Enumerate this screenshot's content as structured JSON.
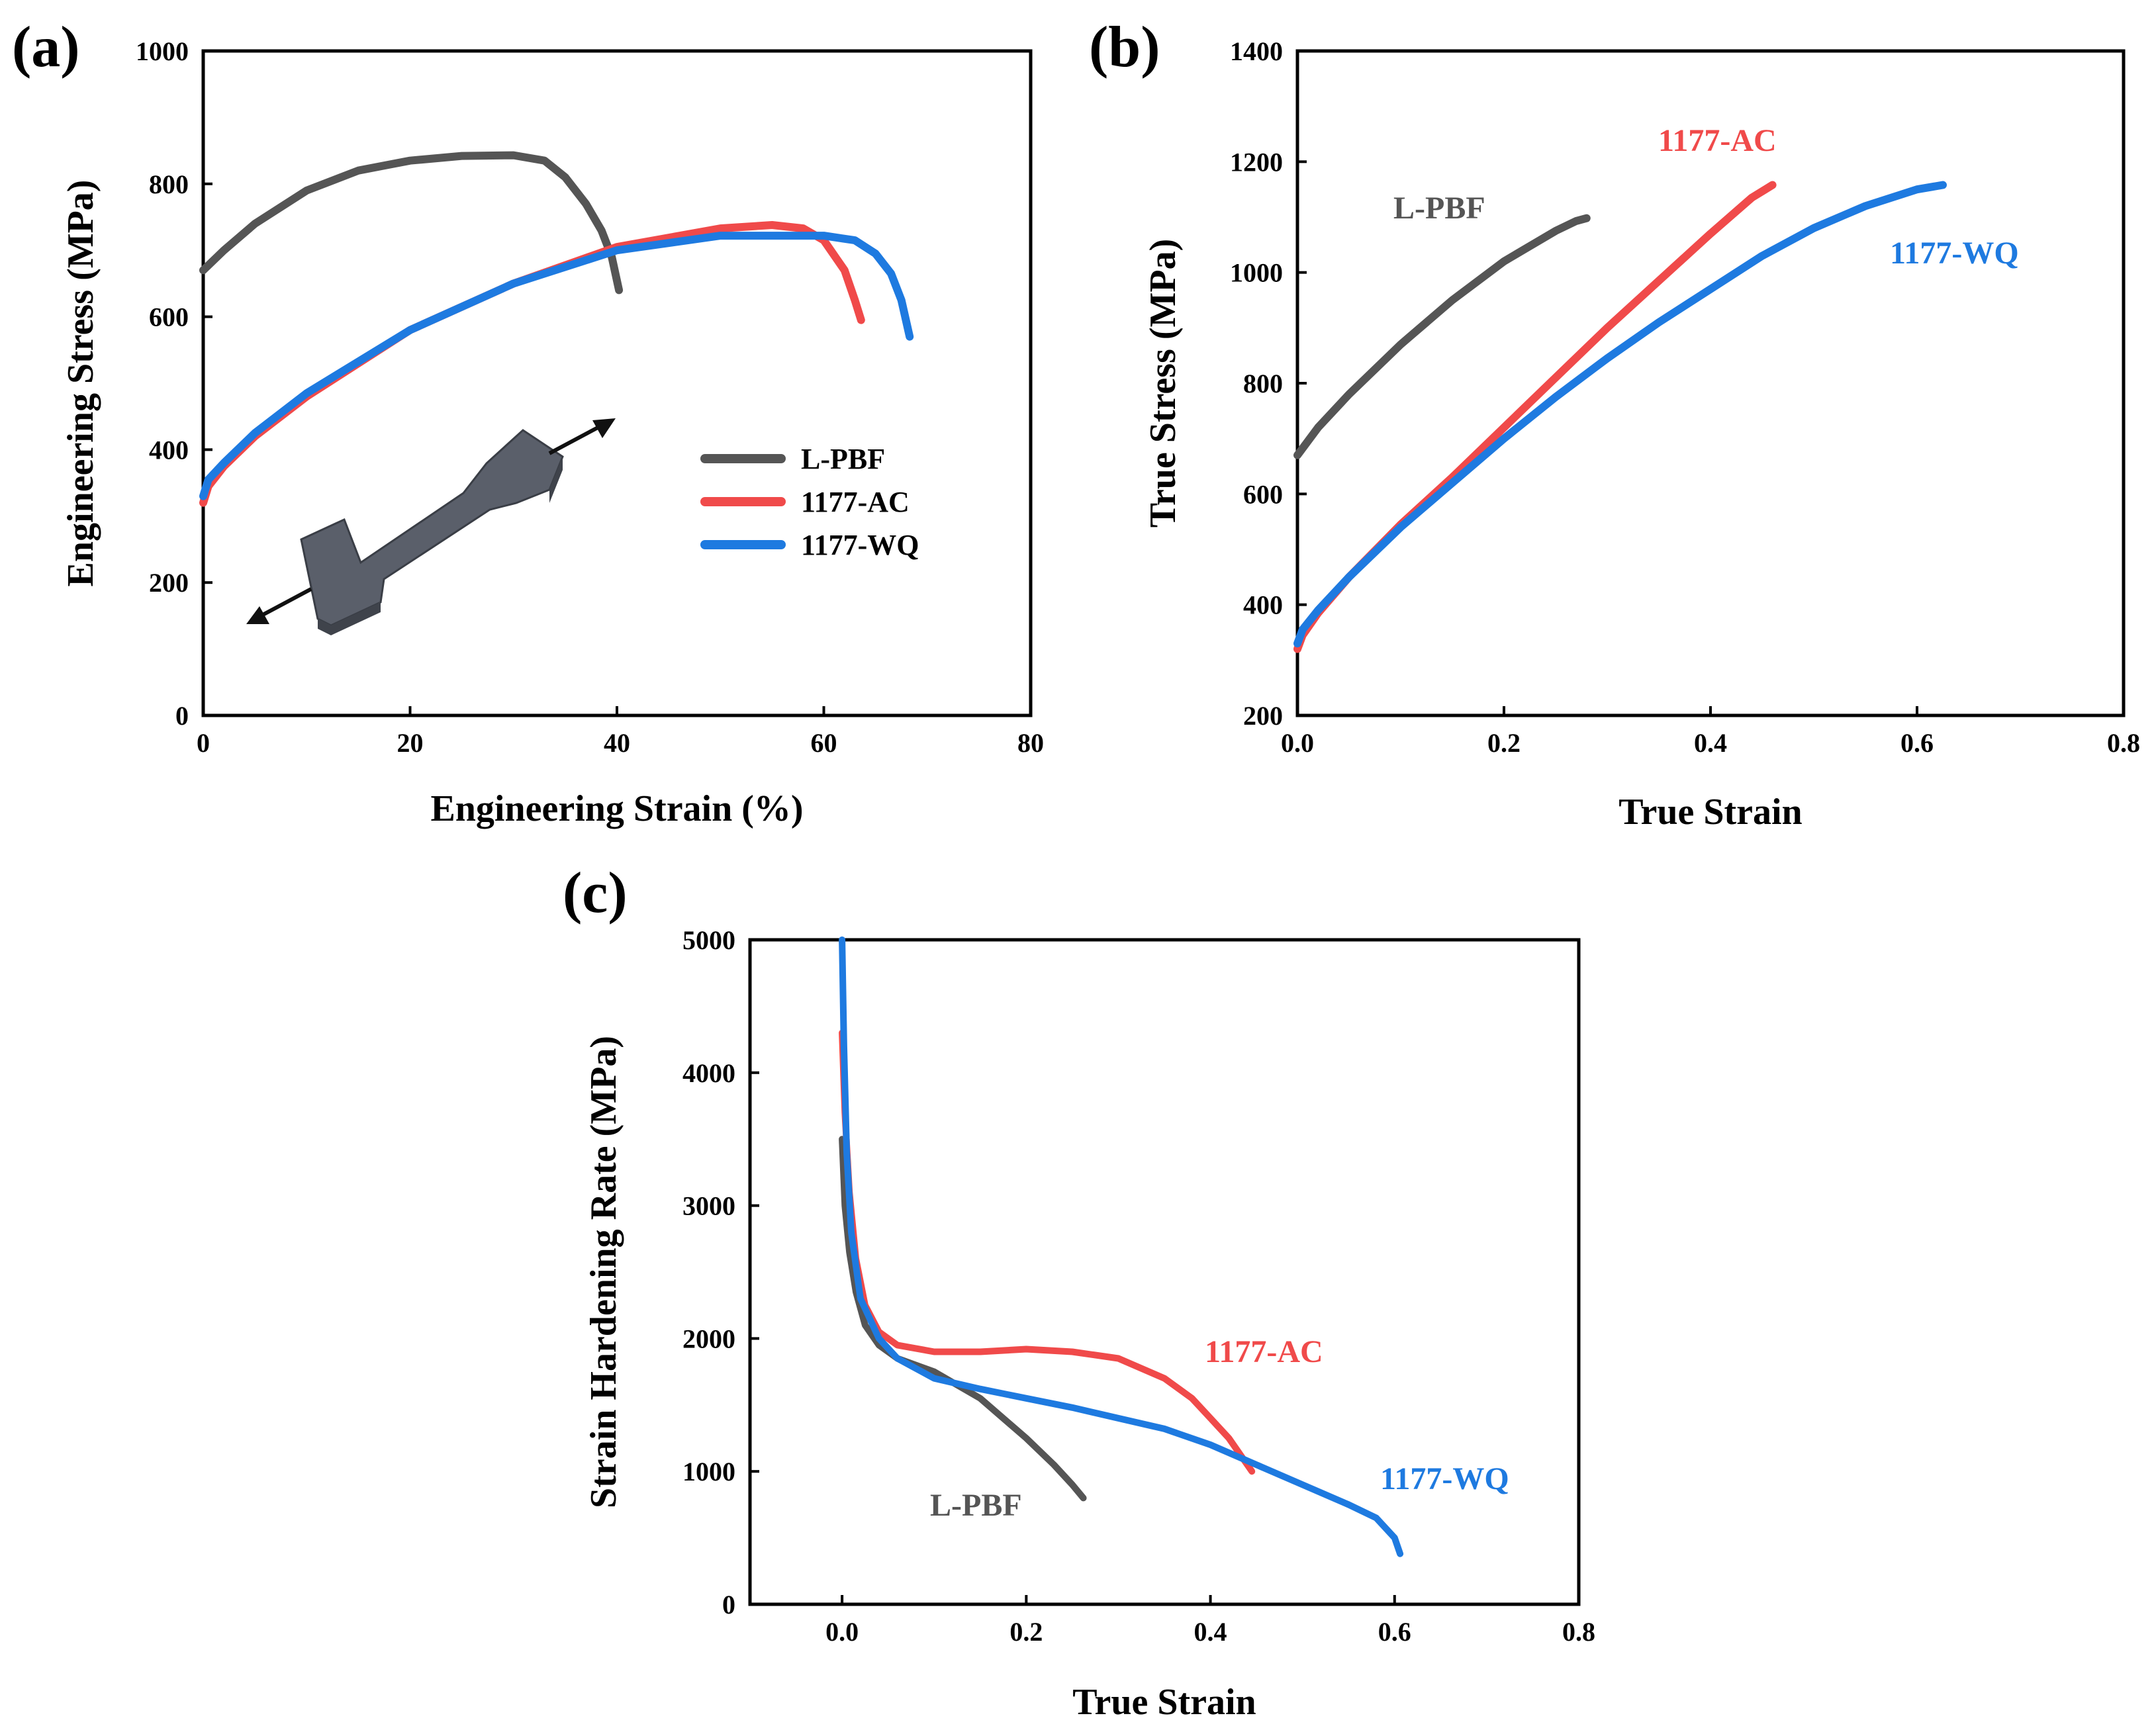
{
  "chart_data": [
    {
      "panel": "(a)",
      "type": "line",
      "xlabel": "Engineering Strain (%)",
      "ylabel": "Engineering Stress (MPa)",
      "xlim": [
        0,
        80
      ],
      "ylim": [
        0,
        1000
      ],
      "xticks": [
        "0",
        "20",
        "40",
        "60",
        "80"
      ],
      "yticks": [
        "0",
        "200",
        "400",
        "600",
        "800",
        "1000"
      ],
      "legend": "right-middle",
      "series": [
        {
          "name": "L-PBF",
          "color": "#555555",
          "x": [
            0,
            2,
            5,
            10,
            15,
            20,
            25,
            30,
            33,
            35,
            37,
            38.5,
            39.5,
            40.2
          ],
          "y": [
            670,
            700,
            740,
            790,
            820,
            835,
            842,
            843,
            835,
            810,
            770,
            730,
            690,
            640
          ]
        },
        {
          "name": "1177-AC",
          "color": "#f04a4a",
          "x": [
            0,
            0.5,
            2,
            5,
            10,
            20,
            30,
            40,
            50,
            55,
            58,
            60,
            62,
            63,
            63.6
          ],
          "y": [
            320,
            345,
            375,
            420,
            480,
            580,
            650,
            705,
            733,
            738,
            733,
            715,
            670,
            625,
            595
          ]
        },
        {
          "name": "1177-WQ",
          "color": "#1e7ae0",
          "x": [
            0,
            0.5,
            2,
            5,
            10,
            20,
            30,
            40,
            50,
            60,
            63,
            65,
            66.5,
            67.5,
            68.3
          ],
          "y": [
            330,
            355,
            380,
            425,
            485,
            580,
            650,
            700,
            722,
            722,
            715,
            695,
            665,
            625,
            570
          ]
        }
      ],
      "inset": "tensile specimen sketch"
    },
    {
      "panel": "(b)",
      "type": "line",
      "xlabel": "True Strain",
      "ylabel": "True Stress (MPa)",
      "xlim": [
        0,
        0.8
      ],
      "ylim": [
        200,
        1400
      ],
      "xticks": [
        "0.0",
        "0.2",
        "0.4",
        "0.6",
        "0.8"
      ],
      "yticks": [
        "200",
        "400",
        "600",
        "800",
        "1000",
        "1200",
        "1400"
      ],
      "annotations": [
        "L-PBF",
        "1177-AC",
        "1177-WQ"
      ],
      "series": [
        {
          "name": "L-PBF",
          "color": "#555555",
          "x": [
            0,
            0.02,
            0.05,
            0.1,
            0.15,
            0.2,
            0.25,
            0.27,
            0.28
          ],
          "y": [
            670,
            720,
            780,
            870,
            950,
            1020,
            1075,
            1093,
            1098
          ]
        },
        {
          "name": "1177-AC",
          "color": "#f04a4a",
          "x": [
            0,
            0.005,
            0.02,
            0.05,
            0.1,
            0.15,
            0.2,
            0.25,
            0.3,
            0.35,
            0.4,
            0.44,
            0.46
          ],
          "y": [
            320,
            345,
            385,
            450,
            545,
            630,
            720,
            810,
            900,
            985,
            1070,
            1135,
            1158
          ]
        },
        {
          "name": "1177-WQ",
          "color": "#1e7ae0",
          "x": [
            0,
            0.005,
            0.02,
            0.05,
            0.1,
            0.15,
            0.2,
            0.25,
            0.3,
            0.35,
            0.4,
            0.45,
            0.5,
            0.55,
            0.6,
            0.625
          ],
          "y": [
            330,
            355,
            390,
            450,
            540,
            620,
            700,
            775,
            845,
            910,
            970,
            1030,
            1080,
            1120,
            1150,
            1158
          ]
        }
      ]
    },
    {
      "panel": "(c)",
      "type": "line",
      "xlabel": "True Strain",
      "ylabel": "Strain Hardening Rate (MPa)",
      "xlim": [
        -0.1,
        0.8
      ],
      "ylim": [
        0,
        5000
      ],
      "xticks": [
        "0.0",
        "0.2",
        "0.4",
        "0.6",
        "0.8"
      ],
      "yticks": [
        "0",
        "1000",
        "2000",
        "3000",
        "4000",
        "5000"
      ],
      "annotations": [
        "1177-AC",
        "1177-WQ",
        "L-PBF"
      ],
      "series": [
        {
          "name": "L-PBF",
          "color": "#555555",
          "x": [
            0,
            0.003,
            0.008,
            0.015,
            0.025,
            0.04,
            0.06,
            0.1,
            0.15,
            0.2,
            0.23,
            0.25,
            0.262
          ],
          "y": [
            3500,
            3000,
            2650,
            2350,
            2100,
            1950,
            1850,
            1750,
            1550,
            1250,
            1050,
            900,
            800
          ]
        },
        {
          "name": "1177-AC",
          "color": "#f04a4a",
          "x": [
            0,
            0.003,
            0.008,
            0.015,
            0.025,
            0.04,
            0.06,
            0.1,
            0.15,
            0.2,
            0.25,
            0.3,
            0.35,
            0.38,
            0.4,
            0.42,
            0.445
          ],
          "y": [
            4300,
            3700,
            3100,
            2600,
            2250,
            2050,
            1950,
            1900,
            1900,
            1920,
            1900,
            1850,
            1700,
            1550,
            1400,
            1250,
            1000
          ]
        },
        {
          "name": "1177-WQ",
          "color": "#1e7ae0",
          "x": [
            0,
            0.002,
            0.005,
            0.01,
            0.02,
            0.04,
            0.06,
            0.1,
            0.15,
            0.2,
            0.25,
            0.3,
            0.35,
            0.4,
            0.45,
            0.5,
            0.55,
            0.58,
            0.6,
            0.606
          ],
          "y": [
            5000,
            4200,
            3400,
            2800,
            2300,
            2000,
            1850,
            1700,
            1620,
            1550,
            1480,
            1400,
            1320,
            1200,
            1050,
            900,
            750,
            650,
            500,
            380
          ]
        }
      ]
    }
  ]
}
